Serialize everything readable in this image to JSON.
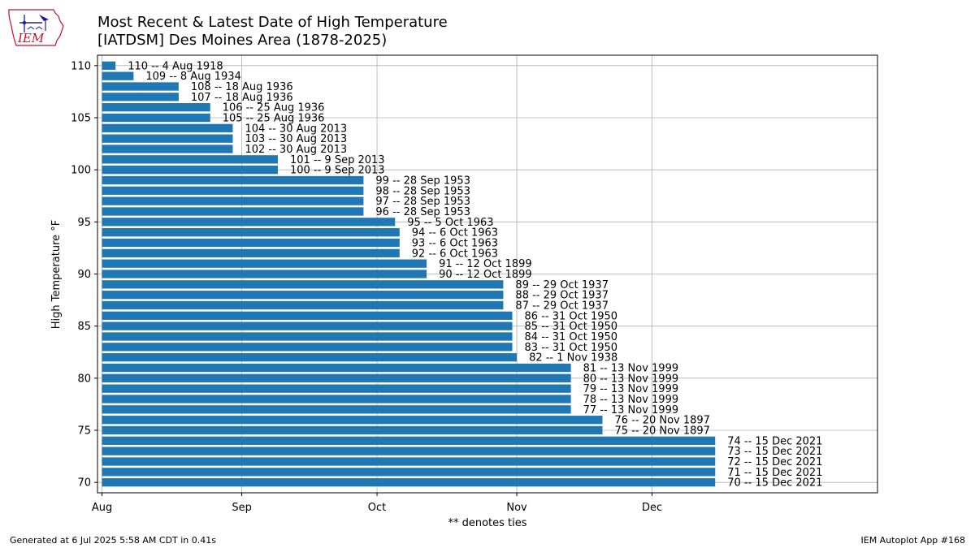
{
  "page": {
    "title_line1": "Most Recent & Latest Date of High Temperature",
    "title_line2": "[IATDSM] Des Moines Area (1878-2025)",
    "logo_text": "IEM",
    "footer_left": "Generated at 6 Jul 2025 5:58 AM CDT in 0.41s",
    "footer_right": "IEM Autoplot App #168"
  },
  "chart_data": {
    "type": "bar",
    "orientation": "horizontal",
    "title": "Most Recent & Latest Date of High Temperature",
    "subtitle": "[IATDSM] Des Moines Area (1878-2025)",
    "xlabel": "** denotes ties",
    "ylabel": "High Temperature °F",
    "x_start": "Aug 1",
    "xlim": [
      "Jul 31",
      "Jan 20"
    ],
    "x_tick_labels": [
      "Aug",
      "Sep",
      "Oct",
      "Nov",
      "Dec"
    ],
    "x_tick_dates": [
      "Aug 1",
      "Sep 1",
      "Oct 1",
      "Nov 1",
      "Dec 1"
    ],
    "ylim": [
      69,
      111
    ],
    "y_ticks": [
      70,
      75,
      80,
      85,
      90,
      95,
      100,
      105,
      110
    ],
    "grid": true,
    "bar_color": "#1f77b4",
    "bars": [
      {
        "temp": 110,
        "date": "4 Aug 1918",
        "label": "110 -- 4 Aug 1918"
      },
      {
        "temp": 109,
        "date": "8 Aug 1934",
        "label": "109 -- 8 Aug 1934"
      },
      {
        "temp": 108,
        "date": "18 Aug 1936",
        "label": "108 -- 18 Aug 1936"
      },
      {
        "temp": 107,
        "date": "18 Aug 1936",
        "label": "107 -- 18 Aug 1936"
      },
      {
        "temp": 106,
        "date": "25 Aug 1936",
        "label": "106 -- 25 Aug 1936"
      },
      {
        "temp": 105,
        "date": "25 Aug 1936",
        "label": "105 -- 25 Aug 1936"
      },
      {
        "temp": 104,
        "date": "30 Aug 2013",
        "label": "104 -- 30 Aug 2013"
      },
      {
        "temp": 103,
        "date": "30 Aug 2013",
        "label": "103 -- 30 Aug 2013"
      },
      {
        "temp": 102,
        "date": "30 Aug 2013",
        "label": "102 -- 30 Aug 2013"
      },
      {
        "temp": 101,
        "date": "9 Sep 2013",
        "label": "101 -- 9 Sep 2013"
      },
      {
        "temp": 100,
        "date": "9 Sep 2013",
        "label": "100 -- 9 Sep 2013"
      },
      {
        "temp": 99,
        "date": "28 Sep 1953",
        "label": "99 -- 28 Sep 1953"
      },
      {
        "temp": 98,
        "date": "28 Sep 1953",
        "label": "98 -- 28 Sep 1953"
      },
      {
        "temp": 97,
        "date": "28 Sep 1953",
        "label": "97 -- 28 Sep 1953"
      },
      {
        "temp": 96,
        "date": "28 Sep 1953",
        "label": "96 -- 28 Sep 1953"
      },
      {
        "temp": 95,
        "date": "5 Oct 1963",
        "label": "95 -- 5 Oct 1963"
      },
      {
        "temp": 94,
        "date": "6 Oct 1963",
        "label": "94 -- 6 Oct 1963"
      },
      {
        "temp": 93,
        "date": "6 Oct 1963",
        "label": "93 -- 6 Oct 1963"
      },
      {
        "temp": 92,
        "date": "6 Oct 1963",
        "label": "92 -- 6 Oct 1963"
      },
      {
        "temp": 91,
        "date": "12 Oct 1899",
        "label": "91 -- 12 Oct 1899"
      },
      {
        "temp": 90,
        "date": "12 Oct 1899",
        "label": "90 -- 12 Oct 1899"
      },
      {
        "temp": 89,
        "date": "29 Oct 1937",
        "label": "89 -- 29 Oct 1937"
      },
      {
        "temp": 88,
        "date": "29 Oct 1937",
        "label": "88 -- 29 Oct 1937"
      },
      {
        "temp": 87,
        "date": "29 Oct 1937",
        "label": "87 -- 29 Oct 1937"
      },
      {
        "temp": 86,
        "date": "31 Oct 1950",
        "label": "86 -- 31 Oct 1950"
      },
      {
        "temp": 85,
        "date": "31 Oct 1950",
        "label": "85 -- 31 Oct 1950"
      },
      {
        "temp": 84,
        "date": "31 Oct 1950",
        "label": "84 -- 31 Oct 1950"
      },
      {
        "temp": 83,
        "date": "31 Oct 1950",
        "label": "83 -- 31 Oct 1950"
      },
      {
        "temp": 82,
        "date": "1 Nov 1938",
        "label": "82 -- 1 Nov 1938"
      },
      {
        "temp": 81,
        "date": "13 Nov 1999",
        "label": "81 -- 13 Nov 1999"
      },
      {
        "temp": 80,
        "date": "13 Nov 1999",
        "label": "80 -- 13 Nov 1999"
      },
      {
        "temp": 79,
        "date": "13 Nov 1999",
        "label": "79 -- 13 Nov 1999"
      },
      {
        "temp": 78,
        "date": "13 Nov 1999",
        "label": "78 -- 13 Nov 1999"
      },
      {
        "temp": 77,
        "date": "13 Nov 1999",
        "label": "77 -- 13 Nov 1999"
      },
      {
        "temp": 76,
        "date": "20 Nov 1897",
        "label": "76 -- 20 Nov 1897"
      },
      {
        "temp": 75,
        "date": "20 Nov 1897",
        "label": "75 -- 20 Nov 1897"
      },
      {
        "temp": 74,
        "date": "15 Dec 2021",
        "label": "74 -- 15 Dec 2021"
      },
      {
        "temp": 73,
        "date": "15 Dec 2021",
        "label": "73 -- 15 Dec 2021"
      },
      {
        "temp": 72,
        "date": "15 Dec 2021",
        "label": "72 -- 15 Dec 2021"
      },
      {
        "temp": 71,
        "date": "15 Dec 2021",
        "label": "71 -- 15 Dec 2021"
      },
      {
        "temp": 70,
        "date": "15 Dec 2021",
        "label": "70 -- 15 Dec 2021"
      }
    ]
  }
}
